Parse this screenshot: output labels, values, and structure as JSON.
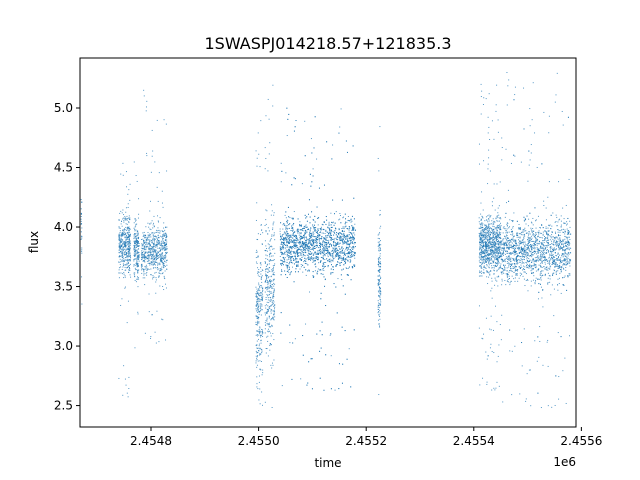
{
  "chart_data": {
    "type": "scatter",
    "title": "1SWASPJ014218.57+121835.3",
    "xlabel": "time",
    "ylabel": "flux",
    "x_offset_label": "1e6",
    "xlim": [
      2454668,
      2455590
    ],
    "ylim": [
      2.32,
      5.42
    ],
    "x_ticks": [
      2454800,
      2455000,
      2455200,
      2455400,
      2455600
    ],
    "x_tick_labels": [
      "2.4548",
      "2.4550",
      "2.4552",
      "2.4554",
      "2.4556"
    ],
    "y_ticks": [
      2.5,
      3.0,
      3.5,
      4.0,
      4.5,
      5.0
    ],
    "y_tick_labels": [
      "2.5",
      "3.0",
      "3.5",
      "4.0",
      "4.5",
      "5.0"
    ],
    "marker_color": "#1f77b4",
    "grid": false,
    "legend": "none",
    "clusters": [
      {
        "x_range": [
          2454670,
          2454672
        ],
        "y_center": 3.95,
        "y_spread": 0.35,
        "outlier_range": [
          3.1,
          5.05
        ],
        "count": 25
      },
      {
        "x_range": [
          2454740,
          2454762
        ],
        "y_center": 3.85,
        "y_spread": 0.25,
        "outlier_range": [
          2.55,
          4.65
        ],
        "count": 420
      },
      {
        "x_range": [
          2454768,
          2454778
        ],
        "y_center": 3.82,
        "y_spread": 0.22,
        "outlier_range": [
          2.75,
          4.55
        ],
        "count": 200
      },
      {
        "x_range": [
          2454782,
          2454830
        ],
        "y_center": 3.8,
        "y_spread": 0.2,
        "outlier_range": [
          3.0,
          5.15
        ],
        "count": 650
      },
      {
        "x_range": [
          2454995,
          2455008
        ],
        "y_center": 3.3,
        "y_spread": 0.6,
        "outlier_range": [
          2.5,
          5.25
        ],
        "count": 260
      },
      {
        "x_range": [
          2455012,
          2455030
        ],
        "y_center": 3.5,
        "y_spread": 0.5,
        "outlier_range": [
          2.45,
          5.2
        ],
        "count": 320
      },
      {
        "x_range": [
          2455040,
          2455180
        ],
        "y_center": 3.85,
        "y_spread": 0.22,
        "outlier_range": [
          2.6,
          5.0
        ],
        "count": 2400
      },
      {
        "x_range": [
          2455222,
          2455227
        ],
        "y_center": 3.6,
        "y_spread": 0.45,
        "outlier_range": [
          2.45,
          5.2
        ],
        "count": 140
      },
      {
        "x_range": [
          2455410,
          2455450
        ],
        "y_center": 3.85,
        "y_spread": 0.23,
        "outlier_range": [
          2.6,
          5.2
        ],
        "count": 900
      },
      {
        "x_range": [
          2455450,
          2455580
        ],
        "y_center": 3.8,
        "y_spread": 0.25,
        "outlier_range": [
          2.45,
          5.3
        ],
        "count": 1700
      }
    ]
  }
}
